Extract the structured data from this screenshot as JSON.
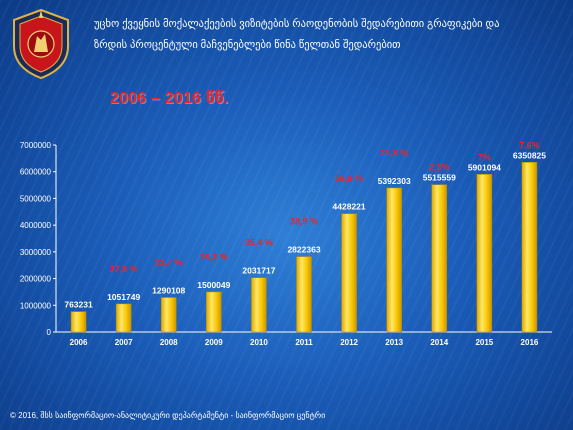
{
  "header": {
    "title_line1": "უცხო ქვეყნის მოქალაქეების ვიზიტების რაოდენობის შედარებითი გრაფიკები და",
    "title_line2": "ზრდის პროცენტული მაჩვენებლები წინა წელთან შედარებით",
    "year_range": "2006 – 2016 წწ."
  },
  "emblem": {
    "icon": "georgian-police-emblem-icon"
  },
  "chart_data": {
    "type": "bar",
    "title": "",
    "xlabel": "",
    "ylabel": "",
    "ylim": [
      0,
      7000000
    ],
    "yticks": [
      "0",
      "1000000",
      "2000000",
      "3000000",
      "4000000",
      "5000000",
      "6000000",
      "7000000"
    ],
    "grid": false,
    "legend": "none",
    "categories": [
      "2006",
      "2007",
      "2008",
      "2009",
      "2010",
      "2011",
      "2012",
      "2013",
      "2014",
      "2015",
      "2016"
    ],
    "values": [
      763231,
      1051749,
      1290108,
      1500049,
      2031717,
      2822363,
      4428221,
      5392303,
      5515559,
      5901094,
      6350825
    ],
    "value_labels": [
      "763231",
      "1051749",
      "1290108",
      "1500049",
      "2031717",
      "2822363",
      "4428221",
      "5392303",
      "5515559",
      "5901094",
      "6350825"
    ],
    "growth_labels": [
      "",
      "37,8 %",
      "22,7 %",
      "16,3 %",
      "35,4 %",
      "38,9 %",
      "56,9 %",
      "21,8 %",
      "2,3%",
      "7%",
      "7.6%"
    ],
    "colors": {
      "bar": "#f7c400",
      "bar_highlight": "#ffe866",
      "growth_label": "#e8262a",
      "axis": "#ffffff"
    }
  },
  "footer": {
    "text": "© 2016, შსს საინფორმაციო-ანალიტიკური დეპარტამენტი - საინფორმაციო ცენტრი"
  }
}
